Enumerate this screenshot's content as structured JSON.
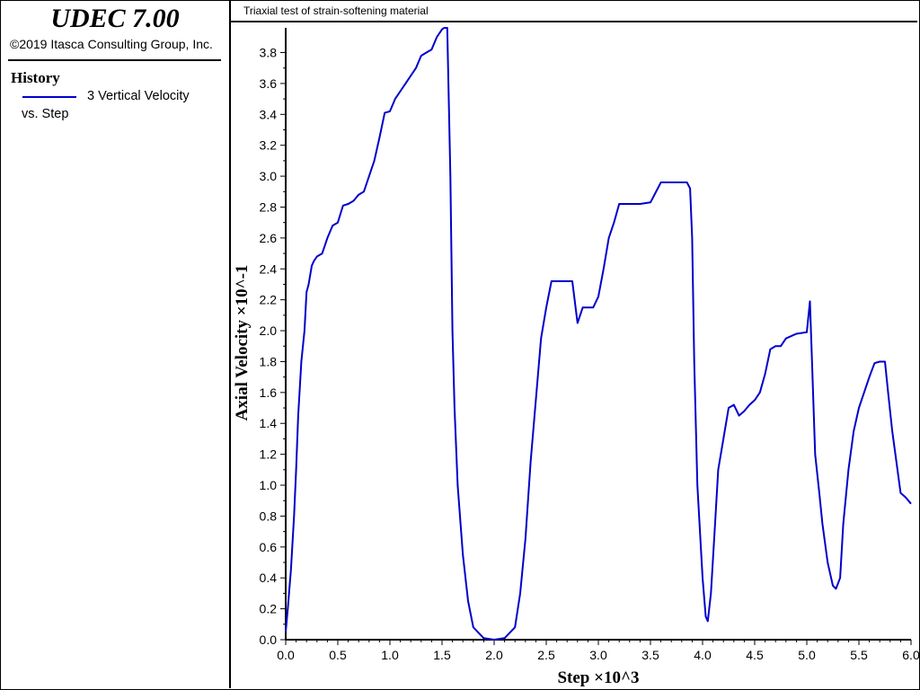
{
  "app": {
    "title": "UDEC 7.00",
    "copyright": "©2019 Itasca Consulting Group, Inc."
  },
  "legend": {
    "heading": "History",
    "series_label": "3 Vertical Velocity",
    "versus_label": "vs. Step",
    "line_color": "#0000cc"
  },
  "plot": {
    "caption": "Triaxial test of strain-softening material"
  },
  "chart_data": {
    "type": "line",
    "title": "Triaxial test of strain-softening material",
    "xlabel": "Step ×10^3",
    "ylabel": "Axial Velocity ×10^-1",
    "xlim": [
      0,
      6.0
    ],
    "ylim": [
      0,
      3.96
    ],
    "x_ticks": [
      "0.0",
      "0.5",
      "1.0",
      "1.5",
      "2.0",
      "2.5",
      "3.0",
      "3.5",
      "4.0",
      "4.5",
      "5.0",
      "5.5",
      "6.0"
    ],
    "y_ticks": [
      "0.0",
      "0.2",
      "0.4",
      "0.6",
      "0.8",
      "1.0",
      "1.2",
      "1.4",
      "1.6",
      "1.8",
      "2.0",
      "2.2",
      "2.4",
      "2.6",
      "2.8",
      "3.0",
      "3.2",
      "3.4",
      "3.6",
      "3.8"
    ],
    "grid": false,
    "series": [
      {
        "name": "3 Vertical Velocity",
        "color": "#0000cc",
        "x": [
          0,
          0.02,
          0.05,
          0.08,
          0.1,
          0.12,
          0.15,
          0.18,
          0.2,
          0.22,
          0.25,
          0.27,
          0.3,
          0.35,
          0.4,
          0.45,
          0.5,
          0.55,
          0.6,
          0.65,
          0.7,
          0.75,
          0.8,
          0.85,
          0.9,
          0.95,
          1.0,
          1.05,
          1.1,
          1.15,
          1.2,
          1.25,
          1.3,
          1.35,
          1.4,
          1.45,
          1.5,
          1.52,
          1.55,
          1.58,
          1.6,
          1.62,
          1.65,
          1.7,
          1.75,
          1.8,
          1.9,
          2.0,
          2.1,
          2.2,
          2.25,
          2.3,
          2.35,
          2.4,
          2.45,
          2.5,
          2.55,
          2.6,
          2.65,
          2.7,
          2.75,
          2.8,
          2.85,
          2.9,
          2.95,
          3.0,
          3.05,
          3.1,
          3.15,
          3.2,
          3.3,
          3.4,
          3.5,
          3.6,
          3.7,
          3.8,
          3.85,
          3.88,
          3.9,
          3.92,
          3.95,
          4.0,
          4.03,
          4.05,
          4.08,
          4.12,
          4.15,
          4.2,
          4.25,
          4.3,
          4.35,
          4.4,
          4.45,
          4.5,
          4.55,
          4.6,
          4.65,
          4.7,
          4.75,
          4.8,
          4.9,
          5.0,
          5.03,
          5.05,
          5.08,
          5.12,
          5.15,
          5.2,
          5.25,
          5.28,
          5.32,
          5.35,
          5.4,
          5.45,
          5.5,
          5.55,
          5.6,
          5.65,
          5.7,
          5.75,
          5.78,
          5.82,
          5.85,
          5.9,
          5.95,
          6.0
        ],
        "values": [
          0.05,
          0.2,
          0.45,
          0.8,
          1.1,
          1.45,
          1.8,
          2.0,
          2.25,
          2.3,
          2.42,
          2.45,
          2.48,
          2.5,
          2.6,
          2.68,
          2.7,
          2.81,
          2.82,
          2.84,
          2.88,
          2.9,
          3.0,
          3.1,
          3.25,
          3.41,
          3.42,
          3.5,
          3.55,
          3.6,
          3.65,
          3.7,
          3.78,
          3.8,
          3.82,
          3.9,
          3.95,
          3.96,
          3.96,
          3.0,
          2.0,
          1.5,
          1.0,
          0.55,
          0.25,
          0.08,
          0.01,
          0.0,
          0.01,
          0.08,
          0.3,
          0.65,
          1.15,
          1.55,
          1.95,
          2.15,
          2.32,
          2.32,
          2.32,
          2.32,
          2.32,
          2.05,
          2.15,
          2.15,
          2.15,
          2.22,
          2.4,
          2.6,
          2.7,
          2.82,
          2.82,
          2.82,
          2.83,
          2.96,
          2.96,
          2.96,
          2.96,
          2.92,
          2.6,
          1.8,
          1.0,
          0.4,
          0.15,
          0.12,
          0.3,
          0.75,
          1.1,
          1.3,
          1.5,
          1.52,
          1.45,
          1.48,
          1.52,
          1.55,
          1.6,
          1.72,
          1.88,
          1.9,
          1.9,
          1.95,
          1.98,
          1.99,
          2.19,
          1.8,
          1.2,
          0.95,
          0.75,
          0.5,
          0.35,
          0.33,
          0.4,
          0.75,
          1.1,
          1.35,
          1.5,
          1.6,
          1.7,
          1.79,
          1.8,
          1.8,
          1.6,
          1.35,
          1.2,
          0.95,
          0.92,
          0.88
        ]
      }
    ]
  }
}
